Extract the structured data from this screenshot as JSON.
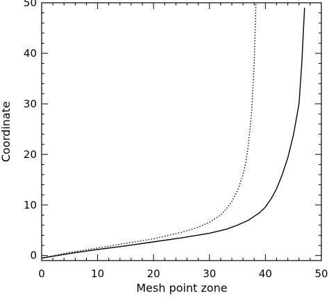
{
  "chart_data": {
    "type": "line",
    "title": "",
    "xlabel": "Mesh point zone",
    "ylabel": "Coordinate",
    "xlim": [
      0,
      50
    ],
    "ylim": [
      -1,
      50
    ],
    "x_ticks": [
      0,
      10,
      20,
      30,
      40,
      50
    ],
    "y_ticks": [
      0,
      10,
      20,
      30,
      40,
      50
    ],
    "x_tick_labels": [
      "0",
      "10",
      "20",
      "30",
      "40",
      "50"
    ],
    "y_tick_labels": [
      "0",
      "10",
      "20",
      "30",
      "40",
      "50"
    ],
    "grid": false,
    "legend": "none",
    "series": [
      {
        "style": "solid",
        "color": "#000000",
        "x": [
          0,
          5,
          10,
          15,
          20,
          25,
          30,
          33,
          35,
          37,
          39,
          40,
          41,
          42,
          43,
          44,
          45,
          46,
          46.5,
          47
        ],
        "y": [
          -0.5,
          0.4,
          1.2,
          1.9,
          2.7,
          3.5,
          4.4,
          5.2,
          6.0,
          7.0,
          8.5,
          9.6,
          11.2,
          13.2,
          16.0,
          19.3,
          23.8,
          30.0,
          38.0,
          49.0
        ]
      },
      {
        "style": "dotted",
        "color": "#000000",
        "x": [
          0,
          5,
          10,
          15,
          20,
          25,
          28,
          30,
          32,
          33,
          34,
          35,
          36,
          36.5,
          37,
          37.5,
          38,
          38.3
        ],
        "y": [
          -0.5,
          0.6,
          1.5,
          2.4,
          3.3,
          4.6,
          5.6,
          6.6,
          8.0,
          9.2,
          10.7,
          12.8,
          16.0,
          18.5,
          22.3,
          28.0,
          38.0,
          50.0
        ]
      }
    ]
  }
}
